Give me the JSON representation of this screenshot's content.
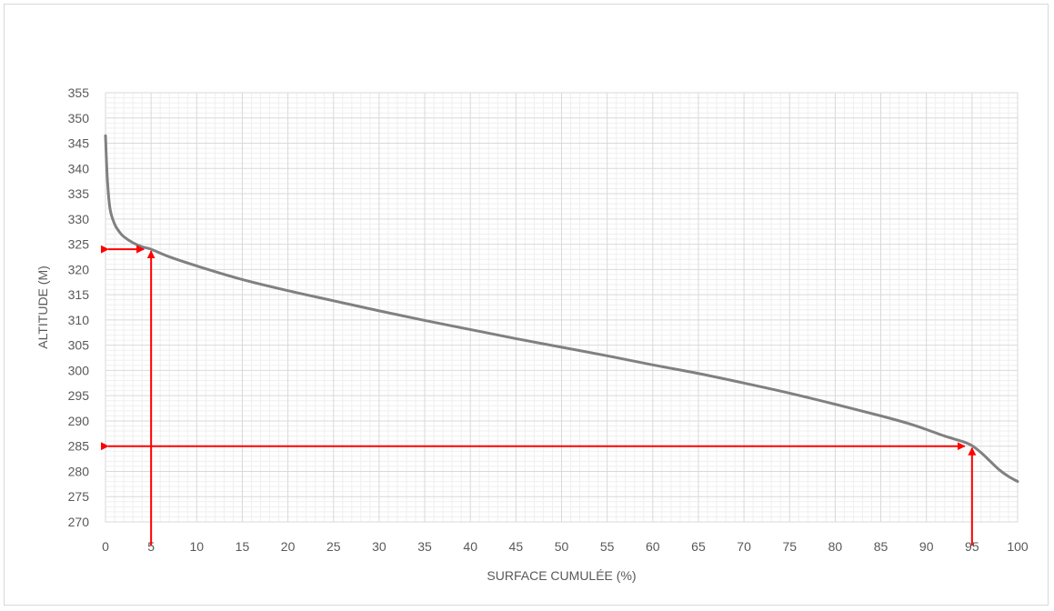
{
  "chart_data": {
    "type": "line",
    "title": "",
    "xlabel": "SURFACE CUMULÉE (%)",
    "ylabel": "ALTITUDE (M)",
    "xlim": [
      0,
      100
    ],
    "ylim": [
      270,
      355
    ],
    "x_ticks": [
      0,
      5,
      10,
      15,
      20,
      25,
      30,
      35,
      40,
      45,
      50,
      55,
      60,
      65,
      70,
      75,
      80,
      85,
      90,
      95,
      100
    ],
    "y_ticks": [
      270,
      275,
      280,
      285,
      290,
      295,
      300,
      305,
      310,
      315,
      320,
      325,
      330,
      335,
      340,
      345,
      350,
      355
    ],
    "grid": "major and minor",
    "legend": "none",
    "series": [
      {
        "color": "#808080",
        "x": [
          0,
          0.2,
          0.5,
          1,
          1.5,
          2,
          3,
          4,
          5,
          7,
          10,
          15,
          20,
          25,
          30,
          35,
          40,
          45,
          50,
          55,
          60,
          65,
          70,
          75,
          80,
          85,
          88,
          90,
          92,
          94,
          95,
          96,
          97,
          98,
          99,
          100
        ],
        "y": [
          346.5,
          338,
          332,
          329,
          327.5,
          326.5,
          325.3,
          324.5,
          324,
          322.5,
          320.7,
          318,
          315.8,
          313.8,
          311.8,
          309.9,
          308.1,
          306.3,
          304.6,
          302.9,
          301.1,
          299.4,
          297.5,
          295.5,
          293.3,
          291,
          289.5,
          288.3,
          287,
          285.9,
          285.1,
          283.7,
          282,
          280.3,
          279,
          278
        ]
      }
    ],
    "annotations": {
      "color": "#ff0000",
      "markers": [
        {
          "x": 5,
          "y": 324
        },
        {
          "x": 95,
          "y": 285
        }
      ]
    }
  }
}
